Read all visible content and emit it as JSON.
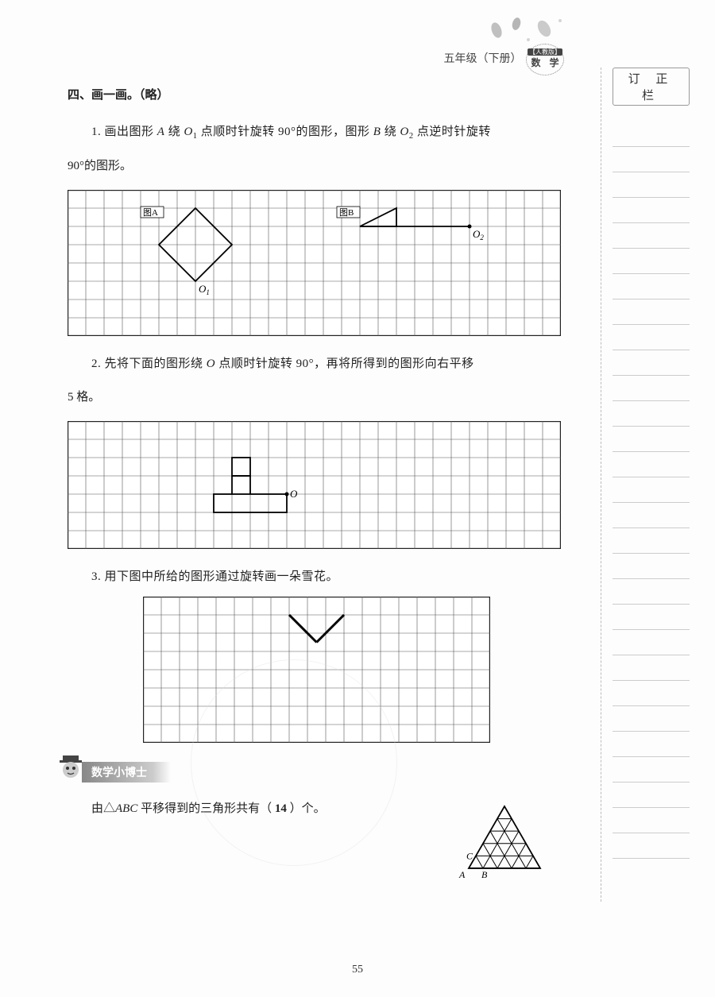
{
  "header": {
    "grade_text": "五年级（下册）",
    "badge_top": "【人教版】",
    "badge_bottom": "数 学"
  },
  "correction": {
    "title": "订 正 栏",
    "line_count": 29
  },
  "section4": {
    "title": "四、画一画。（略）",
    "p1": {
      "text_a": "1. 画出图形 ",
      "A": "A",
      "text_b": " 绕 ",
      "O1": "O",
      "sub1": "1",
      "text_c": " 点顺时针旋转 90°的图形，图形 ",
      "B": "B",
      "text_d": " 绕 ",
      "O2": "O",
      "sub2": "2",
      "text_e": " 点逆时针旋转",
      "cont": "90°的图形。",
      "grid": {
        "cols": 27,
        "rows": 8,
        "cell": 23,
        "labelA": "图A",
        "labelB": "图B",
        "labelO1": "O",
        "labelO1sub": "1",
        "labelO2": "O",
        "labelO2sub": "2",
        "rhombus": [
          [
            7,
            1
          ],
          [
            9,
            3
          ],
          [
            7,
            5
          ],
          [
            5,
            3
          ]
        ],
        "bline": [
          [
            16,
            2
          ],
          [
            22,
            2
          ]
        ],
        "btri": [
          [
            16,
            2
          ],
          [
            18,
            1
          ],
          [
            18,
            2
          ]
        ]
      }
    },
    "p2": {
      "text_a": "2. 先将下面的图形绕 ",
      "O": "O",
      "text_b": " 点顺时针旋转 90°，再将所得到的图形向右平移",
      "cont": "5 格。",
      "grid": {
        "cols": 27,
        "rows": 7,
        "cell": 23,
        "labelO": "O",
        "shape": [
          [
            9,
            3
          ],
          [
            9,
            2
          ],
          [
            10,
            2
          ],
          [
            10,
            3
          ],
          [
            11,
            3
          ],
          [
            11,
            5
          ],
          [
            8,
            5
          ],
          [
            8,
            4
          ],
          [
            12,
            4
          ],
          [
            12,
            5
          ]
        ]
      }
    },
    "p3": {
      "text": "3. 用下图中所给的图形通过旋转画一朵雪花。",
      "grid": {
        "cols": 19,
        "rows": 8,
        "cell": 23,
        "vshape": [
          [
            8,
            1
          ],
          [
            9.5,
            2.5
          ],
          [
            11,
            1
          ]
        ]
      }
    }
  },
  "doctor": {
    "title": "数学小博士",
    "text_a": "由△",
    "ABC": "ABC",
    "text_b": " 平移得到的三角形共有（ ",
    "answer": "14",
    "text_c": " ）个。",
    "labelA": "A",
    "labelB": "B",
    "labelC": "C"
  },
  "page_number": "55"
}
